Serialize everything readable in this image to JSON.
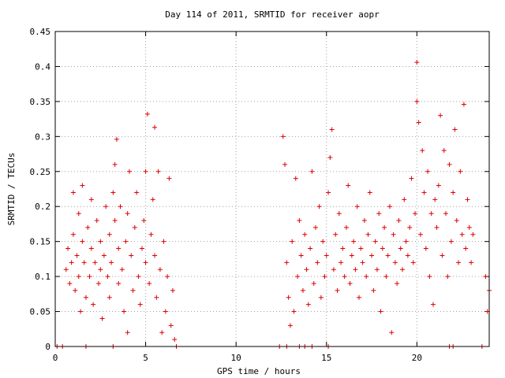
{
  "chart_data": {
    "type": "scatter",
    "title": "Day 114 of 2011, SRMTID for receiver aopr",
    "xlabel": "GPS time / hours",
    "ylabel": "SRMTID / TECUs",
    "xlim": [
      0,
      24
    ],
    "ylim": [
      0,
      0.45
    ],
    "grid": true,
    "marker": "+",
    "color": "#e00000",
    "x_ticks": [
      0,
      5,
      10,
      15,
      20
    ],
    "x_tick_labels": [
      "0",
      "5",
      "10",
      "15",
      "20"
    ],
    "y_ticks": [
      0,
      0.05,
      0.1,
      0.15,
      0.2,
      0.25,
      0.3,
      0.35,
      0.4,
      0.45
    ],
    "y_tick_labels": [
      "0",
      "0.05",
      "0.1",
      "0.15",
      "0.2",
      "0.25",
      "0.3",
      "0.35",
      "0.4",
      "0.45"
    ],
    "series": [
      {
        "points": [
          [
            0.1,
            0.0
          ],
          [
            0.4,
            0.0
          ],
          [
            1.7,
            0.0
          ],
          [
            3.2,
            0.0
          ],
          [
            6.7,
            0.0
          ],
          [
            12.4,
            0.0
          ],
          [
            12.8,
            0.0
          ],
          [
            13.5,
            0.0
          ],
          [
            13.8,
            0.0
          ],
          [
            14.2,
            0.0
          ],
          [
            15.1,
            0.0
          ],
          [
            21.8,
            0.0
          ],
          [
            22.0,
            0.0
          ],
          [
            23.6,
            0.0
          ],
          [
            0.6,
            0.11
          ],
          [
            0.7,
            0.14
          ],
          [
            0.8,
            0.09
          ],
          [
            0.9,
            0.12
          ],
          [
            1.0,
            0.16
          ],
          [
            1.0,
            0.22
          ],
          [
            1.1,
            0.08
          ],
          [
            1.2,
            0.13
          ],
          [
            1.3,
            0.19
          ],
          [
            1.3,
            0.1
          ],
          [
            1.4,
            0.05
          ],
          [
            1.5,
            0.15
          ],
          [
            1.5,
            0.23
          ],
          [
            1.6,
            0.12
          ],
          [
            1.7,
            0.07
          ],
          [
            1.8,
            0.17
          ],
          [
            1.9,
            0.1
          ],
          [
            2.0,
            0.14
          ],
          [
            2.0,
            0.21
          ],
          [
            2.1,
            0.06
          ],
          [
            2.2,
            0.12
          ],
          [
            2.3,
            0.18
          ],
          [
            2.4,
            0.09
          ],
          [
            2.5,
            0.15
          ],
          [
            2.5,
            0.11
          ],
          [
            2.6,
            0.04
          ],
          [
            2.7,
            0.13
          ],
          [
            2.8,
            0.2
          ],
          [
            2.9,
            0.1
          ],
          [
            3.0,
            0.16
          ],
          [
            3.0,
            0.07
          ],
          [
            3.1,
            0.12
          ],
          [
            3.2,
            0.22
          ],
          [
            3.3,
            0.26
          ],
          [
            3.3,
            0.18
          ],
          [
            3.4,
            0.296
          ],
          [
            3.5,
            0.14
          ],
          [
            3.5,
            0.09
          ],
          [
            3.6,
            0.2
          ],
          [
            3.7,
            0.11
          ],
          [
            3.8,
            0.05
          ],
          [
            3.9,
            0.15
          ],
          [
            4.0,
            0.19
          ],
          [
            4.0,
            0.02
          ],
          [
            4.1,
            0.25
          ],
          [
            4.2,
            0.13
          ],
          [
            4.3,
            0.08
          ],
          [
            4.4,
            0.17
          ],
          [
            4.5,
            0.22
          ],
          [
            4.6,
            0.1
          ],
          [
            4.7,
            0.06
          ],
          [
            4.8,
            0.14
          ],
          [
            4.9,
            0.18
          ],
          [
            5.0,
            0.12
          ],
          [
            5.0,
            0.25
          ],
          [
            5.1,
            0.332
          ],
          [
            5.2,
            0.09
          ],
          [
            5.3,
            0.16
          ],
          [
            5.4,
            0.21
          ],
          [
            5.5,
            0.313
          ],
          [
            5.5,
            0.13
          ],
          [
            5.6,
            0.07
          ],
          [
            5.7,
            0.25
          ],
          [
            5.8,
            0.11
          ],
          [
            5.9,
            0.02
          ],
          [
            6.0,
            0.15
          ],
          [
            6.1,
            0.05
          ],
          [
            6.2,
            0.1
          ],
          [
            6.3,
            0.24
          ],
          [
            6.4,
            0.03
          ],
          [
            6.5,
            0.08
          ],
          [
            6.6,
            0.01
          ],
          [
            12.6,
            0.3
          ],
          [
            12.7,
            0.26
          ],
          [
            12.8,
            0.12
          ],
          [
            12.9,
            0.07
          ],
          [
            13.0,
            0.03
          ],
          [
            13.1,
            0.15
          ],
          [
            13.2,
            0.05
          ],
          [
            13.3,
            0.24
          ],
          [
            13.4,
            0.1
          ],
          [
            13.5,
            0.18
          ],
          [
            13.6,
            0.13
          ],
          [
            13.7,
            0.08
          ],
          [
            13.8,
            0.16
          ],
          [
            13.9,
            0.11
          ],
          [
            14.0,
            0.06
          ],
          [
            14.1,
            0.14
          ],
          [
            14.2,
            0.25
          ],
          [
            14.3,
            0.09
          ],
          [
            14.4,
            0.17
          ],
          [
            14.5,
            0.12
          ],
          [
            14.6,
            0.2
          ],
          [
            14.7,
            0.07
          ],
          [
            14.8,
            0.15
          ],
          [
            14.9,
            0.1
          ],
          [
            15.0,
            0.13
          ],
          [
            15.1,
            0.22
          ],
          [
            15.2,
            0.27
          ],
          [
            15.3,
            0.31
          ],
          [
            15.4,
            0.11
          ],
          [
            15.5,
            0.16
          ],
          [
            15.6,
            0.08
          ],
          [
            15.7,
            0.19
          ],
          [
            15.8,
            0.12
          ],
          [
            15.9,
            0.14
          ],
          [
            16.0,
            0.1
          ],
          [
            16.1,
            0.17
          ],
          [
            16.2,
            0.23
          ],
          [
            16.3,
            0.09
          ],
          [
            16.4,
            0.13
          ],
          [
            16.5,
            0.15
          ],
          [
            16.6,
            0.11
          ],
          [
            16.7,
            0.2
          ],
          [
            16.8,
            0.07
          ],
          [
            16.9,
            0.14
          ],
          [
            17.0,
            0.12
          ],
          [
            17.1,
            0.18
          ],
          [
            17.2,
            0.1
          ],
          [
            17.3,
            0.16
          ],
          [
            17.4,
            0.22
          ],
          [
            17.5,
            0.13
          ],
          [
            17.6,
            0.08
          ],
          [
            17.7,
            0.15
          ],
          [
            17.8,
            0.11
          ],
          [
            17.9,
            0.19
          ],
          [
            18.0,
            0.05
          ],
          [
            18.1,
            0.14
          ],
          [
            18.2,
            0.17
          ],
          [
            18.3,
            0.1
          ],
          [
            18.4,
            0.13
          ],
          [
            18.5,
            0.2
          ],
          [
            18.6,
            0.02
          ],
          [
            18.7,
            0.16
          ],
          [
            18.8,
            0.12
          ],
          [
            18.9,
            0.09
          ],
          [
            19.0,
            0.18
          ],
          [
            19.1,
            0.14
          ],
          [
            19.2,
            0.11
          ],
          [
            19.3,
            0.21
          ],
          [
            19.4,
            0.15
          ],
          [
            19.5,
            0.13
          ],
          [
            19.6,
            0.17
          ],
          [
            19.7,
            0.24
          ],
          [
            19.8,
            0.12
          ],
          [
            19.9,
            0.19
          ],
          [
            20.0,
            0.35
          ],
          [
            20.0,
            0.406
          ],
          [
            20.1,
            0.32
          ],
          [
            20.2,
            0.16
          ],
          [
            20.3,
            0.28
          ],
          [
            20.4,
            0.22
          ],
          [
            20.5,
            0.14
          ],
          [
            20.6,
            0.25
          ],
          [
            20.7,
            0.1
          ],
          [
            20.8,
            0.19
          ],
          [
            20.9,
            0.06
          ],
          [
            21.0,
            0.21
          ],
          [
            21.1,
            0.17
          ],
          [
            21.2,
            0.23
          ],
          [
            21.3,
            0.33
          ],
          [
            21.4,
            0.13
          ],
          [
            21.5,
            0.28
          ],
          [
            21.6,
            0.19
          ],
          [
            21.7,
            0.1
          ],
          [
            21.8,
            0.26
          ],
          [
            21.9,
            0.15
          ],
          [
            22.0,
            0.22
          ],
          [
            22.1,
            0.31
          ],
          [
            22.2,
            0.18
          ],
          [
            22.3,
            0.12
          ],
          [
            22.4,
            0.25
          ],
          [
            22.5,
            0.16
          ],
          [
            22.6,
            0.346
          ],
          [
            22.7,
            0.14
          ],
          [
            22.8,
            0.21
          ],
          [
            22.9,
            0.17
          ],
          [
            23.0,
            0.12
          ],
          [
            23.1,
            0.16
          ],
          [
            23.8,
            0.1
          ],
          [
            23.9,
            0.05
          ],
          [
            24.0,
            0.08
          ]
        ]
      }
    ]
  }
}
